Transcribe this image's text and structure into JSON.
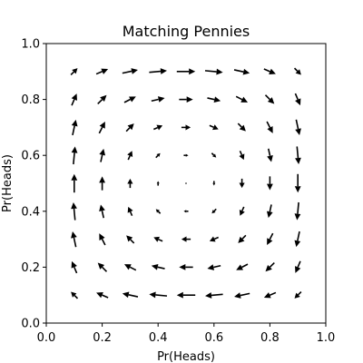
{
  "chart_data": {
    "type": "quiver",
    "title": "Matching Pennies",
    "xlabel": "Pr(Heads)",
    "ylabel": "Pr(Heads)",
    "xlim": [
      0,
      1
    ],
    "ylim": [
      0,
      1
    ],
    "xticks": [
      0.0,
      0.2,
      0.4,
      0.6,
      0.8,
      1.0
    ],
    "yticks": [
      0.0,
      0.2,
      0.4,
      0.6,
      0.8,
      1.0
    ],
    "xtick_labels": [
      "0.0",
      "0.2",
      "0.4",
      "0.6",
      "0.8",
      "1.0"
    ],
    "ytick_labels": [
      "0.0",
      "0.2",
      "0.4",
      "0.6",
      "0.8",
      "1.0"
    ],
    "grid": false,
    "arrow_color": "#000000",
    "x": [
      0.1,
      0.2,
      0.3,
      0.4,
      0.5,
      0.6,
      0.7,
      0.8,
      0.9
    ],
    "y": [
      0.1,
      0.2,
      0.3,
      0.4,
      0.5,
      0.6,
      0.7,
      0.8,
      0.9
    ],
    "field": {
      "u": "x(1-x)(2y-1)",
      "v": "y(1-y)(1-2x)"
    }
  }
}
